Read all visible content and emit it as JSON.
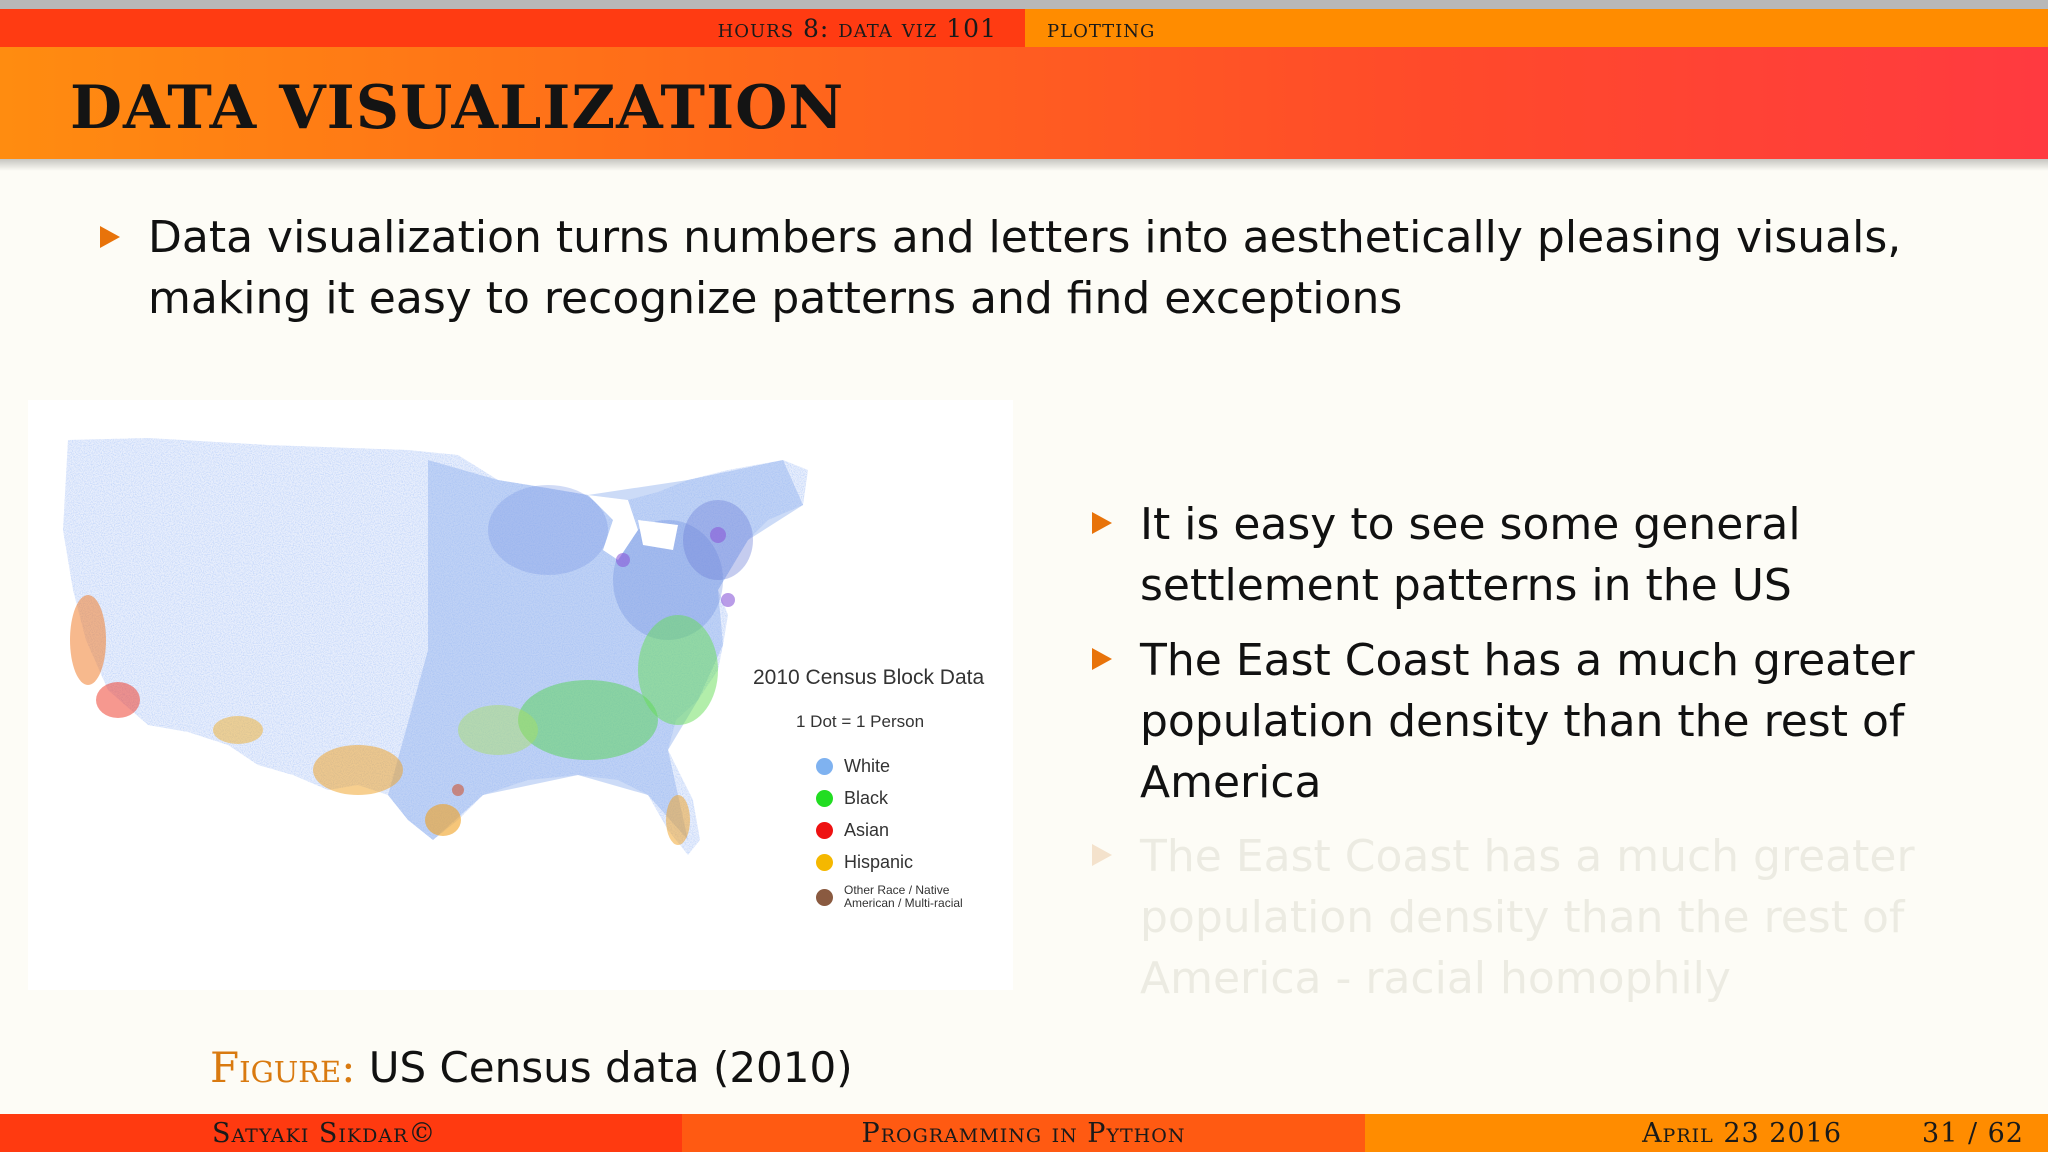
{
  "nav": {
    "section": "hours 8: data viz 101",
    "subsection": "plotting"
  },
  "title": "DATA VISUALIZATION",
  "bullets": {
    "b1": "Data visualization turns numbers and letters into aesthetically pleasing visuals, making it easy to recognize patterns and find exceptions",
    "b2": "It is easy to see some general settlement patterns in the US",
    "b3": "The East Coast has a much greater population density than the rest of America",
    "b4": "The East Coast has a much greater population density than the rest of America - racial homophily"
  },
  "figure": {
    "legend_title": "2010 Census Block Data",
    "legend_sub": "1 Dot = 1 Person",
    "legend": [
      {
        "label": "White",
        "color": "#7fb2f0"
      },
      {
        "label": "Black",
        "color": "#22dd22"
      },
      {
        "label": "Asian",
        "color": "#ee1111"
      },
      {
        "label": "Hispanic",
        "color": "#f5b800"
      },
      {
        "label": "Other Race / Native American / Multi-racial",
        "color": "#8a5a40"
      }
    ],
    "caption_label": "Figure:",
    "caption_text": "US Census data (2010)"
  },
  "footer": {
    "author": "Satyaki Sikdar©",
    "course": "Programming in Python",
    "date": "April 23 2016",
    "page": "31 / 62"
  }
}
